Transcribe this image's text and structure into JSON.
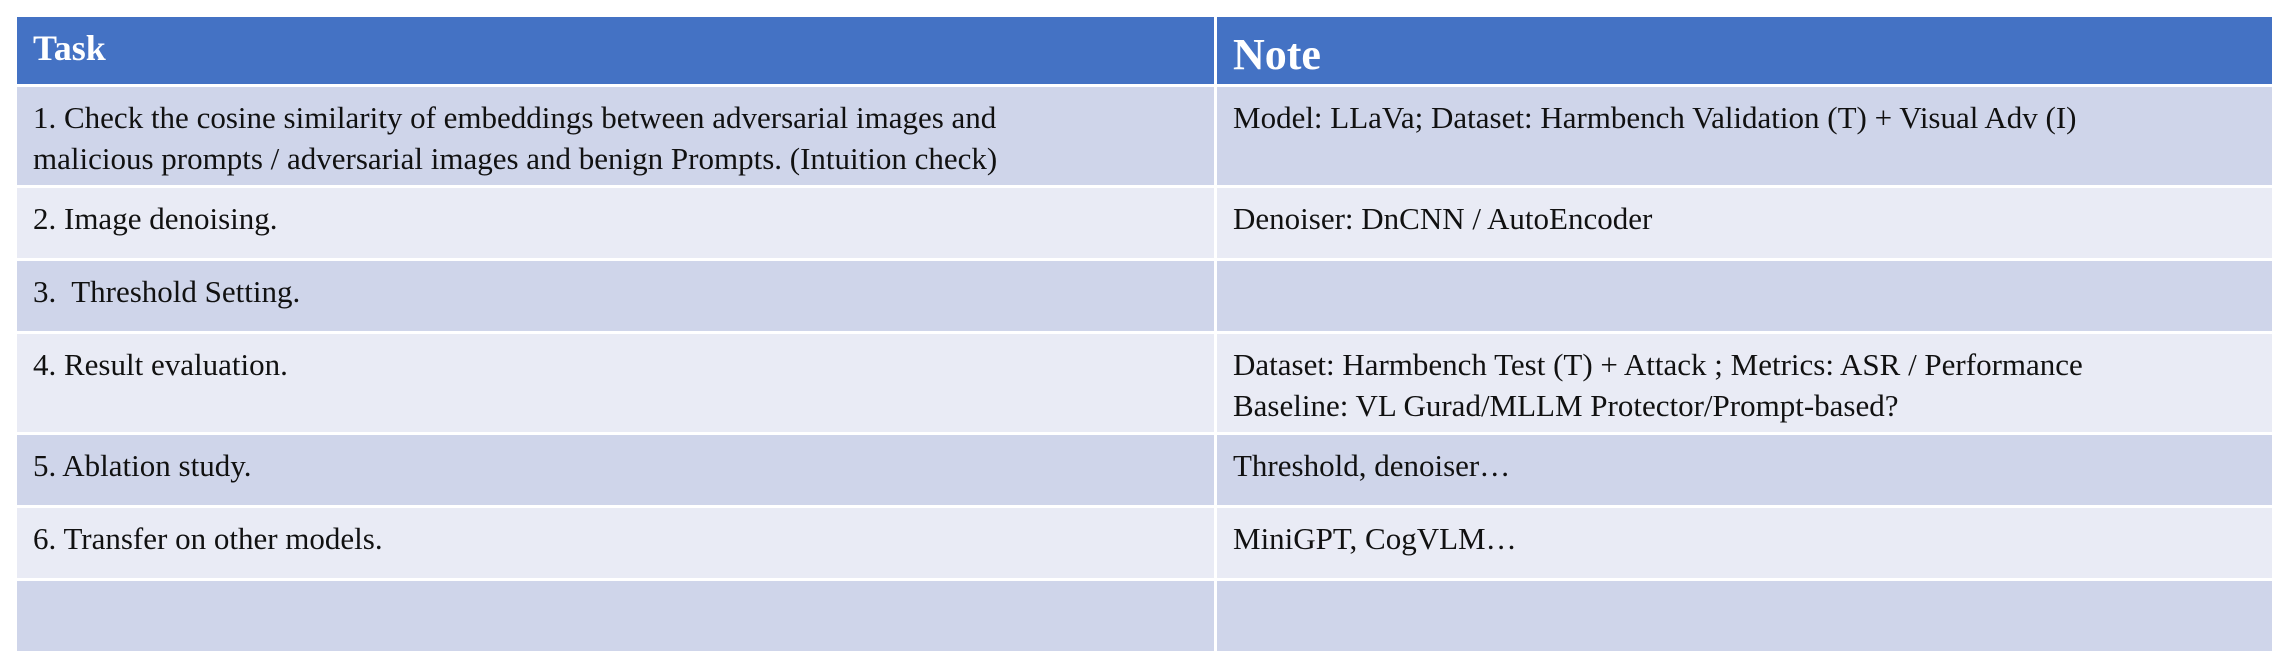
{
  "header": {
    "task": "Task",
    "note": "Note"
  },
  "rows": [
    {
      "task": [
        "1. Check the cosine similarity of embeddings between adversarial images and",
        "malicious prompts / adversarial images and benign Prompts. (Intuition check)"
      ],
      "note": [
        "Model: LLaVa; Dataset: Harmbench Validation (T) + Visual Adv (I)"
      ]
    },
    {
      "task": [
        "2. Image denoising."
      ],
      "note": [
        "Denoiser: DnCNN / AutoEncoder"
      ]
    },
    {
      "task": [
        "3.  Threshold Setting."
      ],
      "note": [
        ""
      ]
    },
    {
      "task": [
        "4. Result evaluation."
      ],
      "note": [
        "Dataset: Harmbench Test (T) + Attack ; Metrics: ASR / Performance",
        "Baseline: VL Gurad/MLLM Protector/Prompt-based?"
      ]
    },
    {
      "task": [
        "5. Ablation study."
      ],
      "note": [
        "Threshold, denoiser…"
      ]
    },
    {
      "task": [
        "6. Transfer on other models."
      ],
      "note": [
        "MiniGPT, CogVLM…"
      ]
    },
    {
      "task": [
        ""
      ],
      "note": [
        ""
      ]
    }
  ]
}
